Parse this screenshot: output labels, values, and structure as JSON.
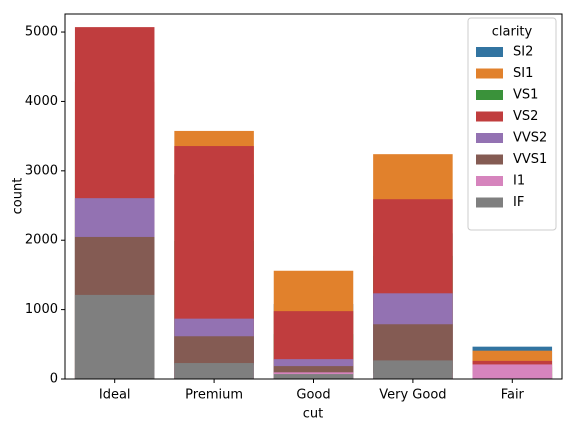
{
  "chart_data": {
    "type": "bar",
    "overlap": true,
    "x_label": "cut",
    "y_label": "count",
    "categories": [
      "Ideal",
      "Premium",
      "Good",
      "Very Good",
      "Fair"
    ],
    "series": [
      {
        "name": "SI2",
        "color": "#3274a1",
        "values": [
          2598,
          2949,
          1081,
          2100,
          466
        ]
      },
      {
        "name": "SI1",
        "color": "#e1812c",
        "values": [
          4282,
          3575,
          1560,
          3240,
          408
        ]
      },
      {
        "name": "VS1",
        "color": "#3a923a",
        "values": [
          3589,
          1989,
          648,
          1775,
          170
        ]
      },
      {
        "name": "VS2",
        "color": "#c03d3e",
        "values": [
          5071,
          3357,
          978,
          2591,
          261
        ]
      },
      {
        "name": "VVS2",
        "color": "#9372b2",
        "values": [
          2606,
          870,
          286,
          1235,
          69
        ]
      },
      {
        "name": "VVS1",
        "color": "#845b53",
        "values": [
          2047,
          616,
          186,
          789,
          17
        ]
      },
      {
        "name": "I1",
        "color": "#d684bd",
        "values": [
          146,
          205,
          96,
          84,
          210
        ]
      },
      {
        "name": "IF",
        "color": "#7f7f7f",
        "values": [
          1212,
          230,
          71,
          268,
          9
        ]
      }
    ],
    "legend_title": "clarity",
    "legend_loc": "upper right",
    "ylim": [
      0,
      5260
    ],
    "yticks": [
      0,
      1000,
      2000,
      3000,
      4000,
      5000
    ],
    "grid": false
  }
}
